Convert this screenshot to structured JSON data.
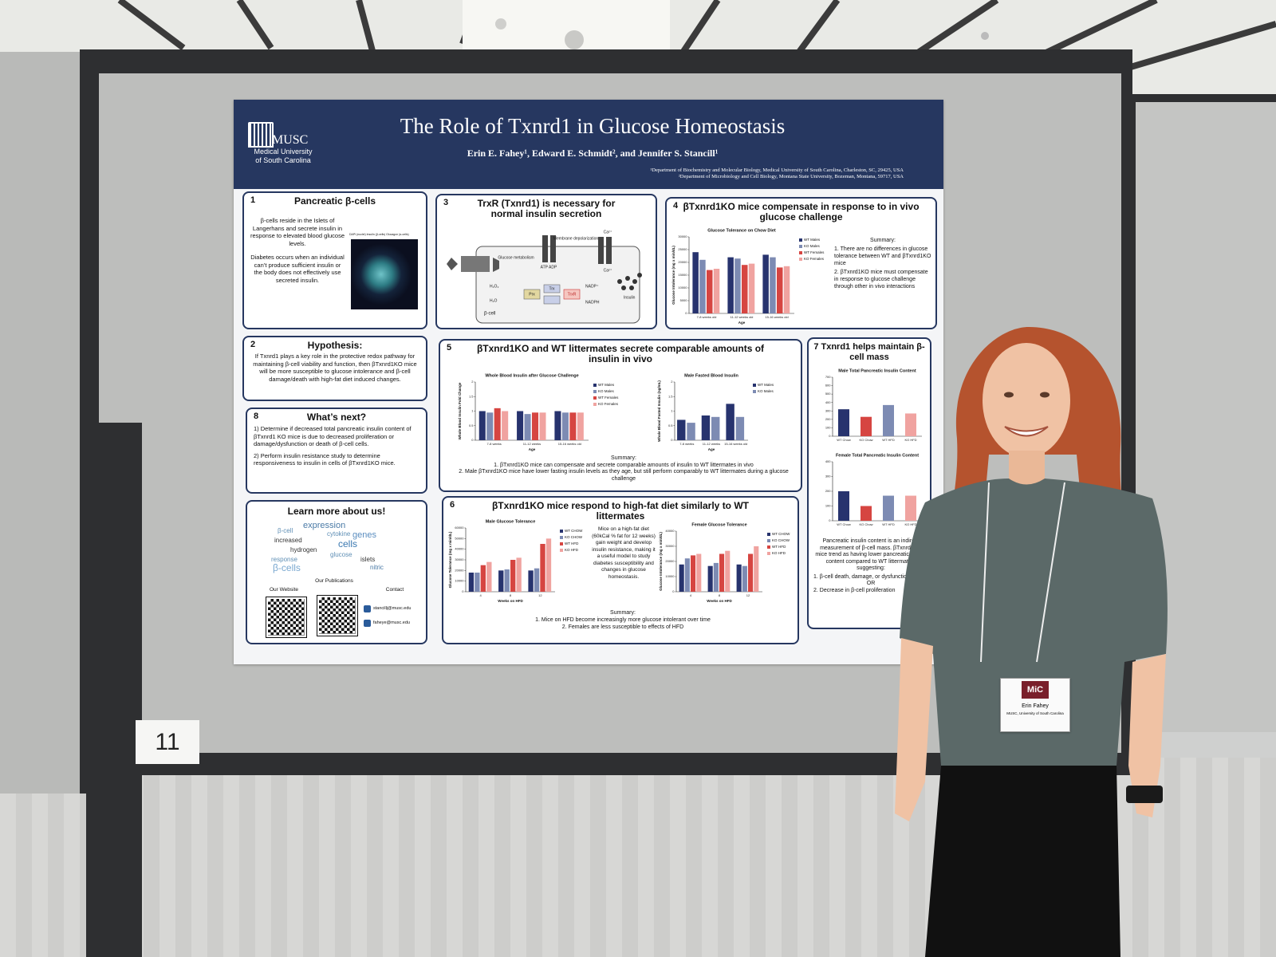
{
  "poster": {
    "logo": {
      "name": "MUSC",
      "subtitle": [
        "Medical University",
        "of South Carolina"
      ]
    },
    "title": "The Role of Txnrd1 in Glucose Homeostasis",
    "authors": "Erin E. Fahey¹, Edward E. Schmidt², and Jennifer S. Stancill¹",
    "affiliations": [
      "¹Department of Biochemistry and Molecular Biology, Medical University of South Carolina, Charleston, SC, 29425, USA",
      "²Department of Microbiology and Cell Biology, Montana State University, Bozeman, Montana, 59717, USA"
    ],
    "section_1": {
      "number": "1",
      "heading": "Pancreatic β-cells",
      "paragraphs": [
        "β-cells reside in the Islets of Langerhans and secrete insulin in response to elevated blood glucose levels.",
        "Diabetes occurs when an individual can’t produce sufficient insulin or the body does not effectively use secreted insulin."
      ],
      "image_caption": "DAPI (nuclei) Insulin (β-cells) Glucagon (α-cells)"
    },
    "section_2": {
      "number": "2",
      "heading": "Hypothesis:",
      "body": "If Txnrd1 plays a key role in the protective redox pathway for maintaining β-cell viability and function, then βTxnrd1KO mice will be more susceptible to glucose intolerance and β-cell damage/death with high-fat diet induced changes."
    },
    "section_8": {
      "number": "8",
      "heading": "What’s next?",
      "items": [
        "1) Determine if decreased total pancreatic insulin content of βTxnrd1 KO mice is due to decreased proliferation or damage/dysfunction or death of β-cell cells.",
        "2) Perform insulin resistance study to determine responsiveness to insulin in cells of βTxnrd1KO mice."
      ]
    },
    "learn_more": {
      "heading": "Learn more about us!",
      "word_cloud": [
        "expression",
        "β-cell",
        "cytokine",
        "genes",
        "increased",
        "cells",
        "hydrogen",
        "glucose",
        "response",
        "islets",
        "β-cells",
        "nitric"
      ],
      "website_label": "Our Website",
      "publications_label": "Our Publications",
      "contact_label": "Contact",
      "emails": [
        "stancillj@musc.edu",
        "faheye@musc.edu"
      ]
    },
    "section_3": {
      "number": "3",
      "heading": "TrxR (Txnrd1) is necessary for normal insulin secretion",
      "diagram_labels": [
        "Glucose metabolism",
        "Membrane depolarization",
        "ATP ADP",
        "Ca²⁺",
        "Ca²⁺",
        "H₂O₂",
        "H₂O",
        "Prx",
        "Trx",
        "TrxR",
        "NADP⁺",
        "NADPH",
        "Insulin",
        "β-cell"
      ]
    },
    "section_4": {
      "number": "4",
      "heading": "βTxnrd1KO mice compensate in response to in vivo glucose challenge",
      "chart": {
        "type": "bar",
        "title": "Glucose Tolerance on Chow Diet",
        "y_label": "Glucose Intolerance (mg x min/dL)",
        "x_label": "Age",
        "categories": [
          "7-8 weeks old",
          "11-12 weeks old",
          "15-16 weeks old"
        ],
        "series": [
          {
            "name": "WT Males",
            "color": "#27336e",
            "values": [
              24000,
              22000,
              23000
            ]
          },
          {
            "name": "KO Males",
            "color": "#7d8bb3",
            "values": [
              21000,
              21500,
              22000
            ]
          },
          {
            "name": "WT Females",
            "color": "#d64541",
            "values": [
              17000,
              19000,
              18000
            ]
          },
          {
            "name": "KO Females",
            "color": "#f0a3a0",
            "values": [
              17500,
              19500,
              18500
            ]
          }
        ],
        "ylim": [
          0,
          30000
        ],
        "yticks": [
          0,
          5000,
          10000,
          15000,
          20000,
          25000,
          30000
        ]
      },
      "summary_title": "Summary:",
      "summary": [
        "1. There are no differences in glucose tolerance between WT and βTxnrd1KO mice",
        "2. βTxnrd1KO mice must compensate in response to glucose challenge through other in vivo interactions"
      ]
    },
    "section_5": {
      "number": "5",
      "heading": "βTxnrd1KO and WT littermates secrete comparable amounts of insulin in vivo",
      "charts": [
        {
          "type": "bar",
          "title": "Whole Blood Insulin after Glucose Challenge",
          "y_label": "Whole Blood Insulin Fold Change",
          "x_label": "Age",
          "categories": [
            "7-8 weeks",
            "11-12 weeks",
            "15-16 weeks old"
          ],
          "series": [
            {
              "name": "WT Males",
              "color": "#27336e",
              "values": [
                1.0,
                1.0,
                1.0
              ]
            },
            {
              "name": "KO Males",
              "color": "#7d8bb3",
              "values": [
                0.95,
                0.9,
                0.95
              ]
            },
            {
              "name": "WT Females",
              "color": "#d64541",
              "values": [
                1.1,
                0.95,
                0.95
              ]
            },
            {
              "name": "KO Females",
              "color": "#f0a3a0",
              "values": [
                1.0,
                0.95,
                0.95
              ]
            }
          ],
          "ylim": [
            0,
            2
          ],
          "yticks": [
            0,
            0.5,
            1,
            1.5,
            2
          ]
        },
        {
          "type": "bar",
          "title": "Male Fasted Blood Insulin",
          "y_label": "Whole Blood Fasted Insulin (ng/mL)",
          "x_label": "Age",
          "categories": [
            "7-8 weeks",
            "11-12 weeks",
            "15-16 weeks old"
          ],
          "series": [
            {
              "name": "WT Males",
              "color": "#27336e",
              "values": [
                0.7,
                0.85,
                1.25
              ]
            },
            {
              "name": "KO Males",
              "color": "#7d8bb3",
              "values": [
                0.6,
                0.8,
                0.8
              ]
            }
          ],
          "ylim": [
            0,
            2
          ],
          "yticks": [
            0,
            0.5,
            1,
            1.5,
            2
          ]
        }
      ],
      "summary_title": "Summary:",
      "summary": [
        "1. βTxnrd1KO mice can compensate and secrete comparable amounts of insulin to WT littermates in vivo",
        "2. Male βTxnrd1KO mice have lower fasting insulin levels as they age, but still perform comparably to WT littermates during a glucose challenge"
      ]
    },
    "section_6": {
      "number": "6",
      "heading": "βTxnrd1KO mice respond to high-fat diet similarly to WT littermates",
      "charts": [
        {
          "type": "bar",
          "title": "Male Glucose Tolerance",
          "y_label": "Glucose Tolerance (mg x min/dL)",
          "x_label": "Weeks on HFD",
          "categories": [
            "4",
            "8",
            "12"
          ],
          "series": [
            {
              "name": "WT CHOW",
              "color": "#27336e",
              "values": [
                18000,
                20000,
                20000
              ]
            },
            {
              "name": "KO CHOW",
              "color": "#7d8bb3",
              "values": [
                18000,
                21000,
                22000
              ]
            },
            {
              "name": "WT HFD",
              "color": "#d64541",
              "values": [
                25000,
                30000,
                45000
              ]
            },
            {
              "name": "KO HFD",
              "color": "#f0a3a0",
              "values": [
                28000,
                32000,
                50000
              ]
            }
          ],
          "ylim": [
            0,
            60000
          ],
          "yticks": [
            0,
            10000,
            20000,
            30000,
            40000,
            50000,
            60000
          ]
        },
        {
          "type": "bar",
          "title": "Female Glucose Tolerance",
          "y_label": "Glucose Intolerance (mg x min/dL)",
          "x_label": "Weeks on HFD",
          "categories": [
            "4",
            "8",
            "12"
          ],
          "series": [
            {
              "name": "WT CHOW",
              "color": "#27336e",
              "values": [
                18000,
                17000,
                18000
              ]
            },
            {
              "name": "KO CHOW",
              "color": "#7d8bb3",
              "values": [
                22000,
                19000,
                17000
              ]
            },
            {
              "name": "WT HFD",
              "color": "#d64541",
              "values": [
                24000,
                25000,
                25000
              ]
            },
            {
              "name": "KO HFD",
              "color": "#f0a3a0",
              "values": [
                25000,
                27000,
                30000
              ]
            }
          ],
          "ylim": [
            0,
            40000
          ],
          "yticks": [
            0,
            10000,
            20000,
            30000,
            40000
          ]
        }
      ],
      "note": "Mice on a high-fat diet (60kCal % fat for 12 weeks) gain weight and develop insulin resistance, making it a useful model to study diabetes susceptibility and changes in glucose homeostasis.",
      "summary_title": "Summary:",
      "summary": [
        "1. Mice on HFD become increasingly more glucose intolerant over time",
        "2. Females are less susceptible to effects of HFD"
      ]
    },
    "section_7": {
      "number": "7",
      "heading": "Txnrd1 helps maintain β-cell mass",
      "charts": [
        {
          "type": "bar",
          "title": "Male Total Pancreatic Insulin Content",
          "categories": [
            "WT Chow",
            "KO Chow",
            "WT HFD",
            "KO HFD"
          ],
          "values": [
            320,
            230,
            370,
            270
          ],
          "colors": [
            "#27336e",
            "#d64541",
            "#7d8bb3",
            "#f0a3a0"
          ],
          "ylim": [
            0,
            700
          ],
          "yticks": [
            0,
            100,
            200,
            300,
            400,
            500,
            600,
            700
          ]
        },
        {
          "type": "bar",
          "title": "Female Total Pancreatic Insulin Content",
          "categories": [
            "WT Chow",
            "KO Chow",
            "WT HFD",
            "KO HFD"
          ],
          "values": [
            200,
            100,
            170,
            170
          ],
          "colors": [
            "#27336e",
            "#d64541",
            "#7d8bb3",
            "#f0a3a0"
          ],
          "ylim": [
            0,
            400
          ],
          "yticks": [
            0,
            100,
            200,
            300,
            400
          ]
        }
      ],
      "text": "Pancreatic insulin content is an indirect measurement of β-cell mass. βTxnrd1KO mice trend as having lower pancreatic insulin content compared to WT littermates, suggesting:",
      "items": [
        "1. β-cell death, damage, or dysfunction",
        "OR",
        "2. Decrease in β-cell proliferation"
      ]
    }
  },
  "board_number": "11",
  "badge": {
    "logo": "MiC",
    "name": "Erin Fahey",
    "affiliation": "MUSC, University of South Carolina"
  }
}
